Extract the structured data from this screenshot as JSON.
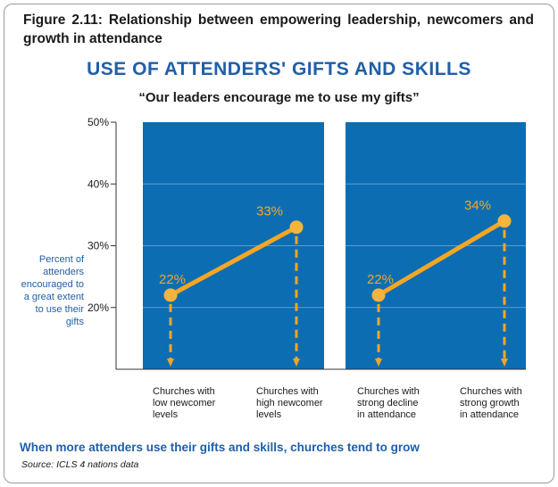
{
  "figure": {
    "title": "Figure 2.11: Relationship between empowering leadership, newcomers and growth in attendance"
  },
  "chart_data": {
    "type": "line",
    "title": "USE OF ATTENDERS' GIFTS AND SKILLS",
    "subtitle": "“Our leaders encourage me to use my gifts”",
    "ylabel": "Percent of attenders encouraged to a great extent to use their gifts",
    "ylim": [
      10,
      50
    ],
    "yticks": [
      "20%",
      "30%",
      "40%",
      "50%"
    ],
    "ytick_values": [
      20,
      30,
      40,
      50
    ],
    "grid": true,
    "panels": [
      {
        "categories": [
          "Churches with low newcomer levels",
          "Churches with high newcomer levels"
        ],
        "values": [
          22,
          33
        ],
        "data_labels": [
          "22%",
          "33%"
        ]
      },
      {
        "categories": [
          "Churches with strong decline in attendance",
          "Churches with strong growth in attendance"
        ],
        "values": [
          22,
          34
        ],
        "data_labels": [
          "22%",
          "34%"
        ]
      }
    ],
    "category_lines": [
      [
        "Churches with",
        "low newcomer",
        "levels"
      ],
      [
        "Churches with",
        "high newcomer",
        "levels"
      ],
      [
        "Churches with",
        "strong decline",
        "in attendance"
      ],
      [
        "Churches with",
        "strong growth",
        "in attendance"
      ]
    ],
    "colors": {
      "panel": "#0c6db3",
      "line": "#f5a623",
      "point": "#f7b43c",
      "label": "#f5a623",
      "arrow": "#f5a623"
    }
  },
  "footer": {
    "text": "When more attenders use their gifts and skills, churches tend to grow",
    "source": "Source: ICLS 4 nations data"
  }
}
